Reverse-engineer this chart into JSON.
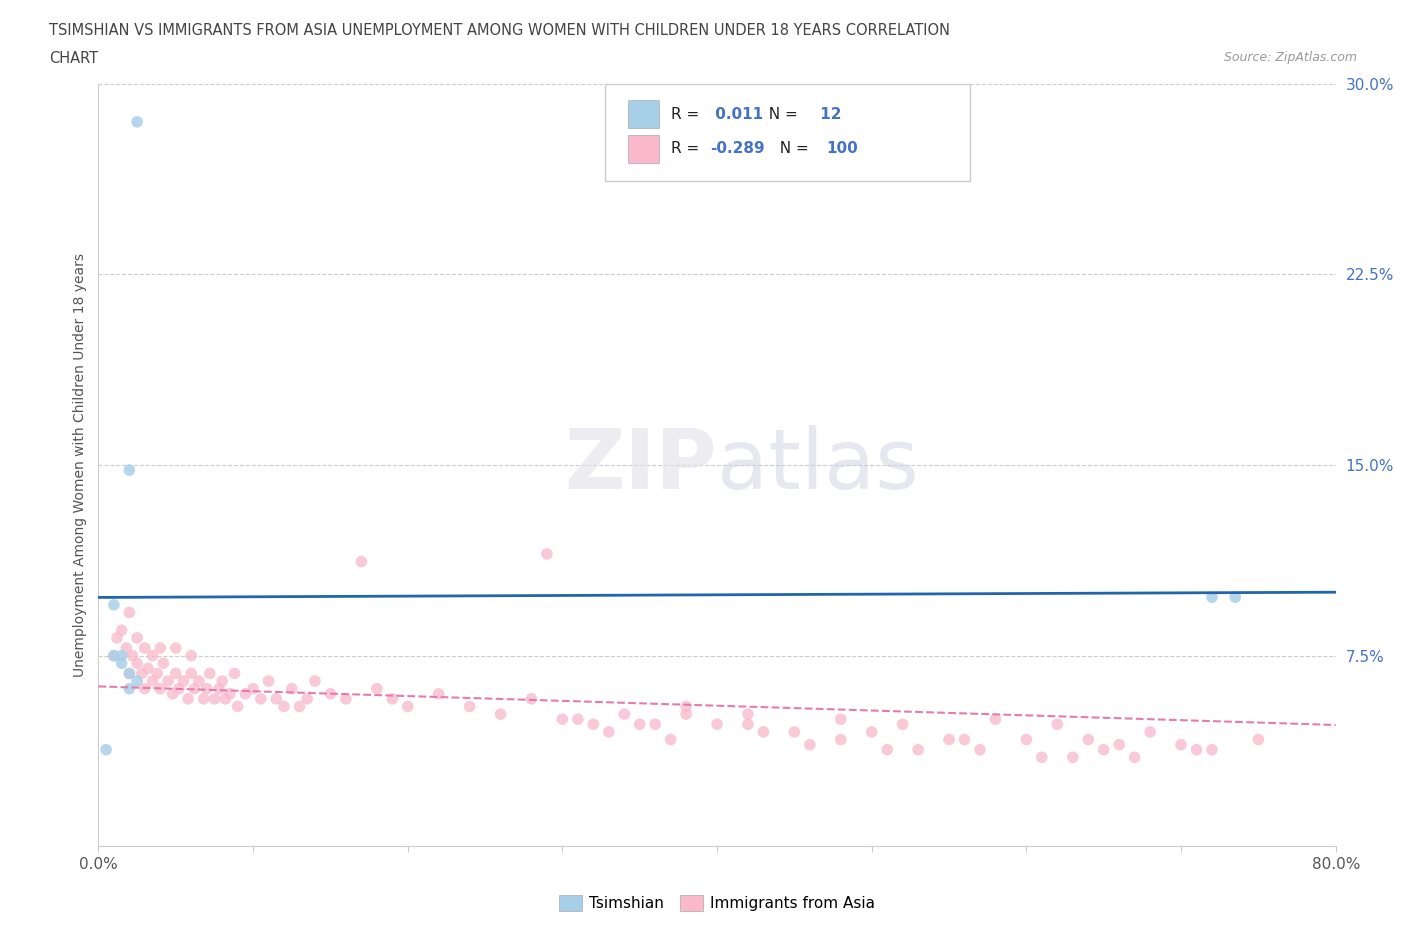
{
  "title_line1": "TSIMSHIAN VS IMMIGRANTS FROM ASIA UNEMPLOYMENT AMONG WOMEN WITH CHILDREN UNDER 18 YEARS CORRELATION",
  "title_line2": "CHART",
  "source_text": "Source: ZipAtlas.com",
  "ylabel": "Unemployment Among Women with Children Under 18 years",
  "xlim": [
    0.0,
    0.8
  ],
  "ylim": [
    0.0,
    0.3
  ],
  "xticks": [
    0.0,
    0.1,
    0.2,
    0.3,
    0.4,
    0.5,
    0.6,
    0.7,
    0.8
  ],
  "yticks": [
    0.0,
    0.075,
    0.15,
    0.225,
    0.3
  ],
  "ytick_labels": [
    "",
    "7.5%",
    "15.0%",
    "22.5%",
    "30.0%"
  ],
  "grid_yticks": [
    0.075,
    0.15,
    0.225,
    0.3
  ],
  "legend_tsimshian_r": "0.011",
  "legend_tsimshian_n": "12",
  "legend_immigrants_r": "-0.289",
  "legend_immigrants_n": "100",
  "tsimshian_color": "#a8cfe8",
  "immigrants_color": "#f9b8cb",
  "tsimshian_trend_color": "#2166ac",
  "immigrants_trend_color": "#e87aaa",
  "legend_value_color": "#4472c4",
  "legend_text_color": "#222222",
  "title_color": "#444444",
  "ytick_color": "#4472c4",
  "xtick_color": "#555555",
  "tsimshian_scatter_x": [
    0.025,
    0.02,
    0.01,
    0.015,
    0.02,
    0.025,
    0.015,
    0.01,
    0.005,
    0.02,
    0.72,
    0.735
  ],
  "tsimshian_scatter_y": [
    0.285,
    0.148,
    0.075,
    0.072,
    0.068,
    0.065,
    0.075,
    0.095,
    0.038,
    0.062,
    0.098,
    0.098
  ],
  "immigrants_scatter_x": [
    0.01,
    0.012,
    0.015,
    0.018,
    0.02,
    0.02,
    0.022,
    0.025,
    0.025,
    0.028,
    0.03,
    0.03,
    0.032,
    0.035,
    0.035,
    0.038,
    0.04,
    0.04,
    0.042,
    0.045,
    0.048,
    0.05,
    0.05,
    0.052,
    0.055,
    0.058,
    0.06,
    0.06,
    0.062,
    0.065,
    0.068,
    0.07,
    0.072,
    0.075,
    0.078,
    0.08,
    0.082,
    0.085,
    0.088,
    0.09,
    0.095,
    0.1,
    0.105,
    0.11,
    0.115,
    0.12,
    0.125,
    0.13,
    0.135,
    0.14,
    0.15,
    0.16,
    0.17,
    0.18,
    0.19,
    0.2,
    0.22,
    0.24,
    0.26,
    0.28,
    0.3,
    0.32,
    0.34,
    0.36,
    0.38,
    0.4,
    0.42,
    0.45,
    0.48,
    0.5,
    0.52,
    0.55,
    0.58,
    0.6,
    0.62,
    0.65,
    0.68,
    0.7,
    0.72,
    0.75,
    0.29,
    0.31,
    0.33,
    0.35,
    0.37,
    0.43,
    0.46,
    0.53,
    0.56,
    0.63,
    0.66,
    0.38,
    0.42,
    0.48,
    0.51,
    0.57,
    0.61,
    0.64,
    0.67,
    0.71
  ],
  "immigrants_scatter_y": [
    0.075,
    0.082,
    0.085,
    0.078,
    0.068,
    0.092,
    0.075,
    0.072,
    0.082,
    0.068,
    0.062,
    0.078,
    0.07,
    0.065,
    0.075,
    0.068,
    0.062,
    0.078,
    0.072,
    0.065,
    0.06,
    0.068,
    0.078,
    0.062,
    0.065,
    0.058,
    0.068,
    0.075,
    0.062,
    0.065,
    0.058,
    0.062,
    0.068,
    0.058,
    0.062,
    0.065,
    0.058,
    0.06,
    0.068,
    0.055,
    0.06,
    0.062,
    0.058,
    0.065,
    0.058,
    0.055,
    0.062,
    0.055,
    0.058,
    0.065,
    0.06,
    0.058,
    0.112,
    0.062,
    0.058,
    0.055,
    0.06,
    0.055,
    0.052,
    0.058,
    0.05,
    0.048,
    0.052,
    0.048,
    0.055,
    0.048,
    0.052,
    0.045,
    0.05,
    0.045,
    0.048,
    0.042,
    0.05,
    0.042,
    0.048,
    0.038,
    0.045,
    0.04,
    0.038,
    0.042,
    0.115,
    0.05,
    0.045,
    0.048,
    0.042,
    0.045,
    0.04,
    0.038,
    0.042,
    0.035,
    0.04,
    0.052,
    0.048,
    0.042,
    0.038,
    0.038,
    0.035,
    0.042,
    0.035,
    0.038
  ]
}
